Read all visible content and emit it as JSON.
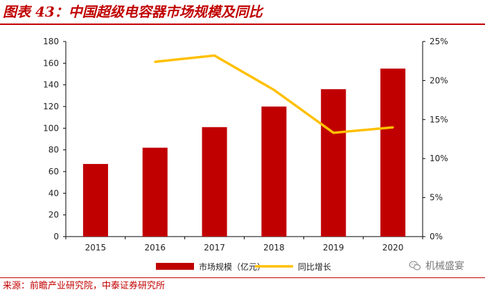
{
  "figure": {
    "title": "图表 43：中国超级电容器市场规模及同比",
    "source": "来源：前瞻产业研究院，中泰证券研究所",
    "watermark": "机械盛宴",
    "watermark_icon": "wechat-icon"
  },
  "chart_data": {
    "type": "bar",
    "title": "图表 43：中国超级电容器市场规模及同比",
    "categories": [
      "2015",
      "2016",
      "2017",
      "2018",
      "2019",
      "2020"
    ],
    "series": [
      {
        "name": "市场规模（亿元）",
        "type": "bar",
        "axis": "left",
        "color": "#c00000",
        "values": [
          67,
          82,
          101,
          120,
          136,
          155
        ]
      },
      {
        "name": "同比增长",
        "type": "line",
        "axis": "right",
        "color": "#ffc000",
        "values": [
          null,
          22.4,
          23.2,
          18.8,
          13.3,
          14.0
        ]
      }
    ],
    "y_left": {
      "min": 0,
      "max": 180,
      "step": 20,
      "ticks": [
        "0",
        "20",
        "40",
        "60",
        "80",
        "100",
        "120",
        "140",
        "160",
        "180"
      ]
    },
    "y_right": {
      "min": 0,
      "max": 25,
      "step": 5,
      "ticks": [
        "0%",
        "5%",
        "10%",
        "15%",
        "20%",
        "25%"
      ]
    },
    "grid": false,
    "legend": "bottom"
  }
}
